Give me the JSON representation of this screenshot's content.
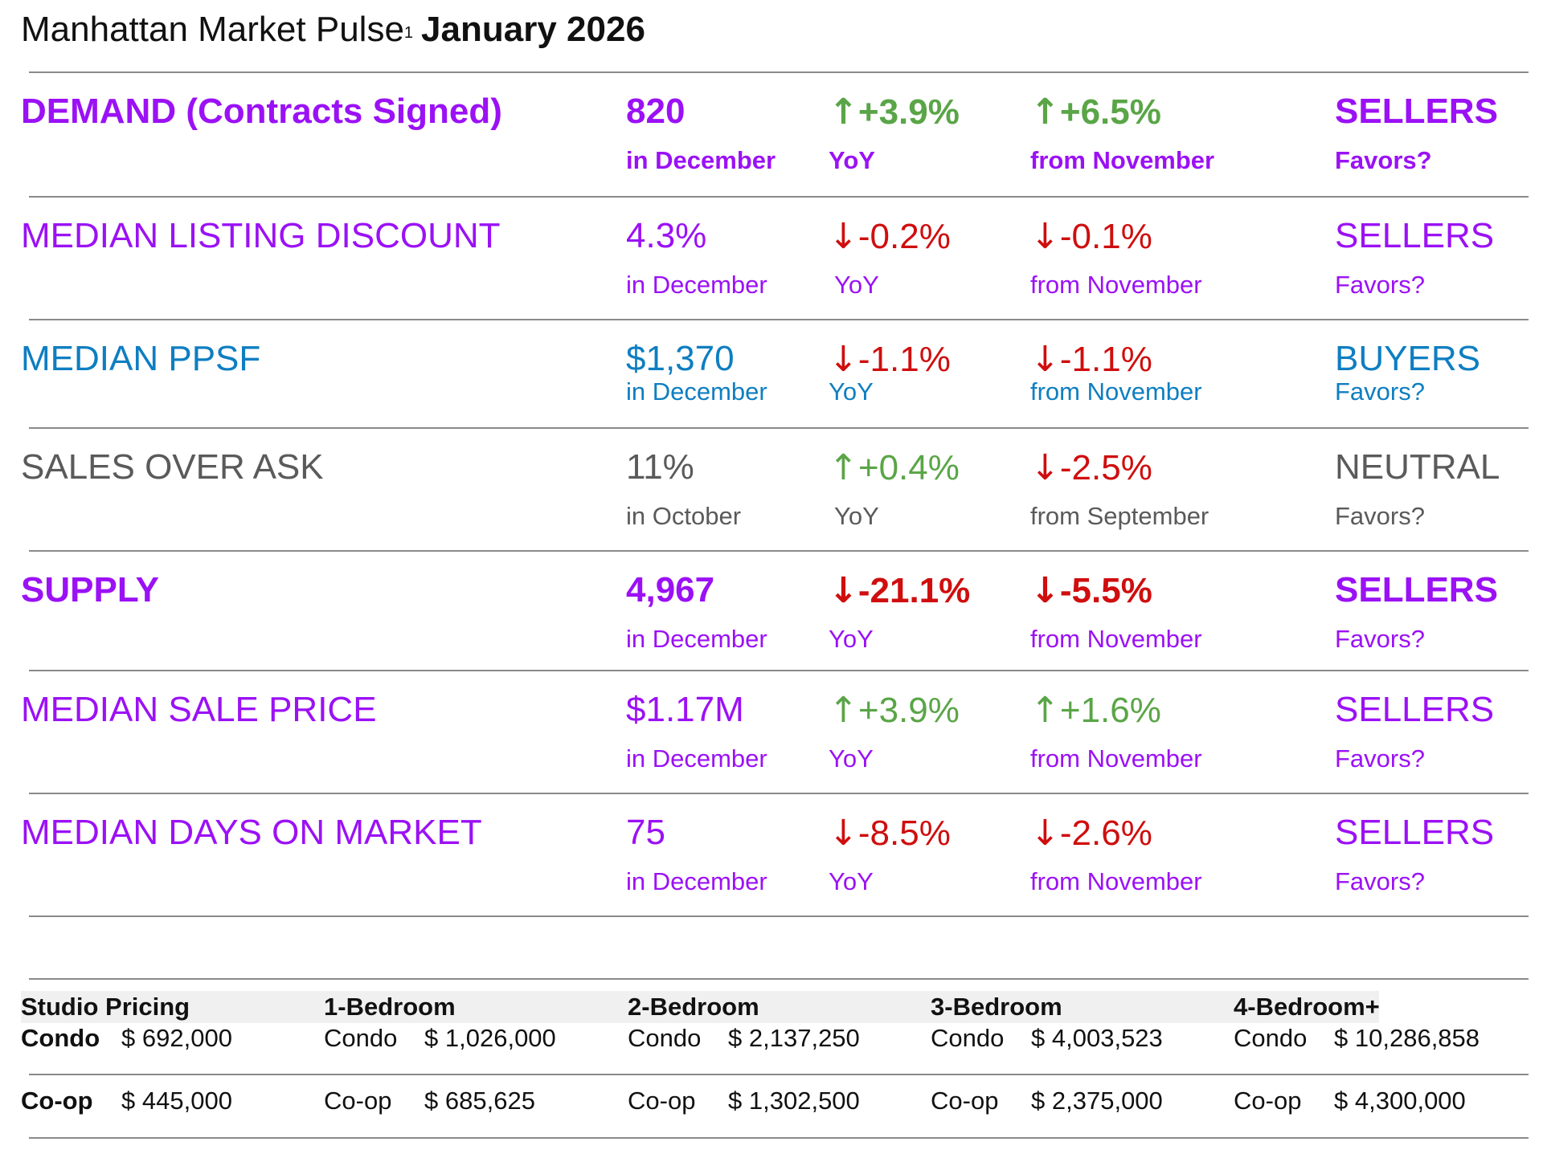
{
  "header": {
    "title": "Manhattan Market Pulse",
    "footnote_marker": "1",
    "period": "January 2026"
  },
  "metrics": [
    {
      "name": "DEMAND (Contracts Signed)",
      "value": "820",
      "value_sub": "in December",
      "yoy_arrow": "↑",
      "yoy": "+3.9%",
      "yoy_sub": "YoY",
      "mom_arrow": "↑",
      "mom": "+6.5%",
      "mom_sub": "from November",
      "favors": "SELLERS",
      "favors_sub": "Favors?"
    },
    {
      "name": "MEDIAN LISTING DISCOUNT",
      "value": "4.3%",
      "value_sub": "in December",
      "yoy_arrow": "↓",
      "yoy": "-0.2%",
      "yoy_sub": "YoY",
      "mom_arrow": "↓",
      "mom": "-0.1%",
      "mom_sub": "from November",
      "favors": "SELLERS",
      "favors_sub": "Favors?"
    },
    {
      "name": "MEDIAN PPSF",
      "value": "$1,370",
      "value_sub": "in December",
      "yoy_arrow": "↓",
      "yoy": "-1.1%",
      "yoy_sub": "YoY",
      "mom_arrow": "↓",
      "mom": "-1.1%",
      "mom_sub": "from November",
      "favors": "BUYERS",
      "favors_sub": "Favors?"
    },
    {
      "name": "SALES OVER ASK",
      "value": "11%",
      "value_sub": "in October",
      "yoy_arrow": "↑",
      "yoy": "+0.4%",
      "yoy_sub": "YoY",
      "mom_arrow": "↓",
      "mom": "-2.5%",
      "mom_sub": "from September",
      "favors": "NEUTRAL",
      "favors_sub": "Favors?"
    },
    {
      "name": "SUPPLY",
      "value": "4,967",
      "value_sub": "in December",
      "yoy_arrow": "↓",
      "yoy": "-21.1%",
      "yoy_sub": "YoY",
      "mom_arrow": "↓",
      "mom": "-5.5%",
      "mom_sub": "from November",
      "favors": "SELLERS",
      "favors_sub": "Favors?"
    },
    {
      "name": "MEDIAN SALE PRICE",
      "value": "$1.17M",
      "value_sub": "in December",
      "yoy_arrow": "↑",
      "yoy": "+3.9%",
      "yoy_sub": "YoY",
      "mom_arrow": "↑",
      "mom": "+1.6%",
      "mom_sub": "from November",
      "favors": "SELLERS",
      "favors_sub": "Favors?"
    },
    {
      "name": "MEDIAN DAYS ON MARKET",
      "value": "75",
      "value_sub": "in December",
      "yoy_arrow": "↓",
      "yoy": "-8.5%",
      "yoy_sub": "YoY",
      "mom_arrow": "↓",
      "mom": "-2.6%",
      "mom_sub": "from November",
      "favors": "SELLERS",
      "favors_sub": "Favors?"
    }
  ],
  "pricing": {
    "headers": [
      "Studio Pricing",
      "1-Bedroom",
      "2-Bedroom",
      "3-Bedroom",
      "4-Bedroom+"
    ],
    "rows": [
      {
        "label": "Condo",
        "values": [
          {
            "type": "Condo",
            "currency": "$",
            "amount": "692,000"
          },
          {
            "type": "Condo",
            "currency": "$",
            "amount": "1,026,000"
          },
          {
            "type": "Condo",
            "currency": "$",
            "amount": "2,137,250"
          },
          {
            "type": "Condo",
            "currency": "$",
            "amount": "4,003,523"
          },
          {
            "type": "Condo",
            "currency": "$",
            "amount": "10,286,858"
          }
        ]
      },
      {
        "label": "Co-op",
        "values": [
          {
            "type": "Co-op",
            "currency": "$",
            "amount": "445,000"
          },
          {
            "type": "Co-op",
            "currency": "$",
            "amount": "685,625"
          },
          {
            "type": "Co-op",
            "currency": "$",
            "amount": "1,302,500"
          },
          {
            "type": "Co-op",
            "currency": "$",
            "amount": "2,375,000"
          },
          {
            "type": "Co-op",
            "currency": "$",
            "amount": "4,300,000"
          }
        ]
      }
    ]
  },
  "colors": {
    "purple": "#9b11f5",
    "blue": "#0e7ec1",
    "gray": "#5a5a5a",
    "up_green": "#5aa547",
    "down_red": "#cf0e0e"
  }
}
